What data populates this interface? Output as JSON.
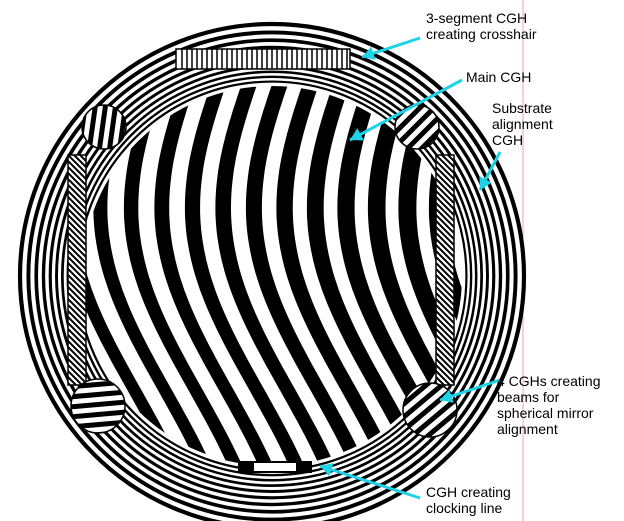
{
  "labels": {
    "crosshair": "3-segment CGH\ncreating  crosshair",
    "main": "Main CGH",
    "substrate": "Substrate\nalignment\nCGH",
    "beams": "4 CGHs creating\nbeams for\nspherical mirror\nalignment",
    "clocking": "CGH creating\nclocking line"
  },
  "colors": {
    "arrow": "#1ed2e8",
    "pattern": "#000000",
    "background": "#ffffff",
    "guide_line": "#e8a8a0"
  }
}
